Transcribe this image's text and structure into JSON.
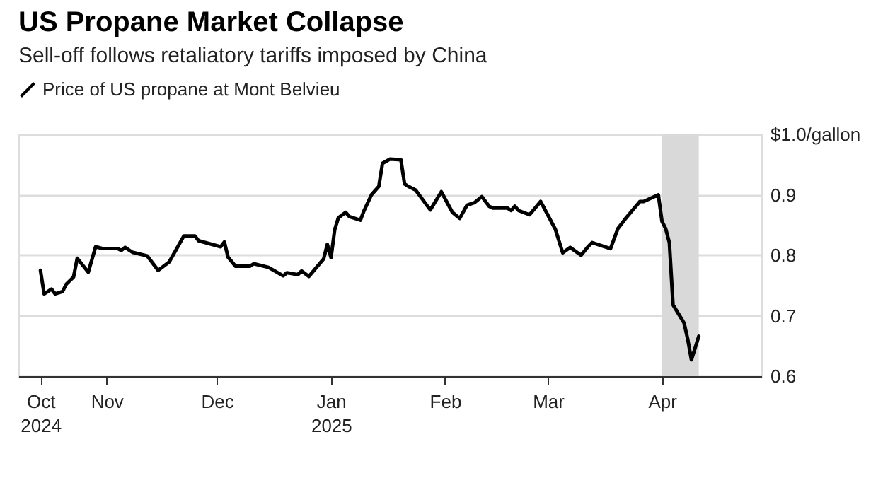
{
  "chart_data": {
    "type": "line",
    "title": "US Propane Market Collapse",
    "subtitle": "Sell-off follows retaliatory tariffs imposed by China",
    "x": [
      "2024-10-14",
      "2024-10-15",
      "2024-10-17",
      "2024-10-18",
      "2024-10-20",
      "2024-10-21",
      "2024-10-23",
      "2024-10-24",
      "2024-10-27",
      "2024-10-29",
      "2024-10-31",
      "2024-11-04",
      "2024-11-05",
      "2024-11-06",
      "2024-11-08",
      "2024-11-12",
      "2024-11-15",
      "2024-11-18",
      "2024-11-22",
      "2024-11-25",
      "2024-11-26",
      "2024-12-02",
      "2024-12-03",
      "2024-12-04",
      "2024-12-06",
      "2024-12-10",
      "2024-12-11",
      "2024-12-15",
      "2024-12-19",
      "2024-12-20",
      "2024-12-23",
      "2024-12-24",
      "2024-12-26",
      "2024-12-30",
      "2024-12-31",
      "2025-01-01",
      "2025-01-02",
      "2025-01-03",
      "2025-01-05",
      "2025-01-06",
      "2025-01-09",
      "2025-01-10",
      "2025-01-12",
      "2025-01-14",
      "2025-01-15",
      "2025-01-17",
      "2025-01-20",
      "2025-01-21",
      "2025-01-22",
      "2025-01-24",
      "2025-01-28",
      "2025-01-31",
      "2025-02-03",
      "2025-02-05",
      "2025-02-07",
      "2025-02-09",
      "2025-02-11",
      "2025-02-13",
      "2025-02-14",
      "2025-02-18",
      "2025-02-19",
      "2025-02-20",
      "2025-02-21",
      "2025-02-24",
      "2025-02-27",
      "2025-03-03",
      "2025-03-05",
      "2025-03-07",
      "2025-03-10",
      "2025-03-12",
      "2025-03-13",
      "2025-03-18",
      "2025-03-20",
      "2025-03-22",
      "2025-03-26",
      "2025-03-27",
      "2025-03-31",
      "2025-04-01",
      "2025-04-02",
      "2025-04-03",
      "2025-04-04",
      "2025-04-07",
      "2025-04-08",
      "2025-04-09",
      "2025-04-11"
    ],
    "series": [
      {
        "name": "Price of US propane at Mont Belvieu",
        "color": "#000000",
        "values": [
          0.775,
          0.736,
          0.744,
          0.736,
          0.74,
          0.752,
          0.764,
          0.795,
          0.772,
          0.814,
          0.811,
          0.811,
          0.808,
          0.813,
          0.805,
          0.799,
          0.775,
          0.789,
          0.832,
          0.832,
          0.824,
          0.814,
          0.822,
          0.797,
          0.782,
          0.782,
          0.786,
          0.78,
          0.766,
          0.771,
          0.768,
          0.774,
          0.765,
          0.794,
          0.818,
          0.796,
          0.842,
          0.862,
          0.871,
          0.864,
          0.858,
          0.874,
          0.9,
          0.914,
          0.952,
          0.959,
          0.958,
          0.918,
          0.914,
          0.908,
          0.875,
          0.905,
          0.871,
          0.861,
          0.883,
          0.887,
          0.897,
          0.881,
          0.878,
          0.878,
          0.874,
          0.881,
          0.874,
          0.867,
          0.889,
          0.843,
          0.804,
          0.813,
          0.8,
          0.815,
          0.821,
          0.811,
          0.844,
          0.86,
          0.889,
          0.889,
          0.9,
          0.856,
          0.844,
          0.821,
          0.718,
          0.688,
          0.661,
          0.627,
          0.666
        ]
      }
    ],
    "xlim": [
      "2024-10-08",
      "2025-04-28"
    ],
    "xticks": [
      {
        "value": "2024-10-14",
        "label": "Oct\n2024"
      },
      {
        "value": "2024-11-01",
        "label": "Nov"
      },
      {
        "value": "2024-12-01",
        "label": "Dec"
      },
      {
        "value": "2025-01-01",
        "label": "Jan\n2025"
      },
      {
        "value": "2025-02-01",
        "label": "Feb"
      },
      {
        "value": "2025-03-01",
        "label": "Mar"
      },
      {
        "value": "2025-04-01",
        "label": "Apr"
      }
    ],
    "ylim": [
      0.6,
      1.0
    ],
    "yticks": [
      0.6,
      0.7,
      0.8,
      0.9,
      {
        "value": 1.0,
        "label": "$1.0/gallon"
      }
    ],
    "bands": [
      {
        "axis": "x",
        "from": "2025-04-01",
        "to": "2025-04-11",
        "color": "#d9d9d9"
      }
    ],
    "grid": "y",
    "legend": "top left",
    "marker": "none",
    "line_style": "solid"
  }
}
